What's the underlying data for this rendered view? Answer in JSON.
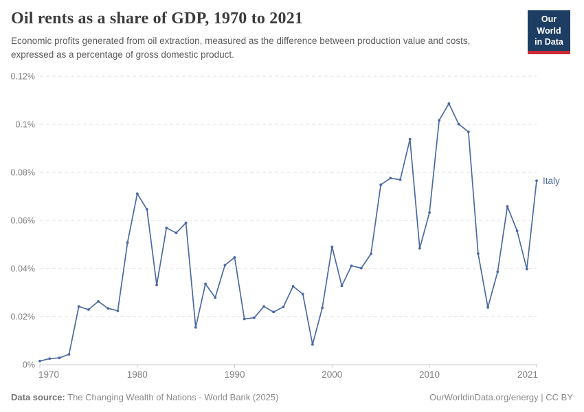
{
  "header": {
    "title": "Oil rents as a share of GDP, 1970 to 2021",
    "subtitle": "Economic profits generated from oil extraction, measured as the difference between production value and costs, expressed as a percentage of gross domestic product.",
    "logo": {
      "line1": "Our World",
      "line2": "in Data",
      "bg_color": "#1d3d63",
      "accent_color": "#cc2a36"
    }
  },
  "footer": {
    "source_label": "Data source:",
    "source_text": " The Changing Wealth of Nations - World Bank (2025)",
    "credit": "OurWorldinData.org/energy | CC BY"
  },
  "chart_data": {
    "type": "line",
    "title": "Oil rents as a share of GDP, 1970 to 2021",
    "xlabel": "",
    "ylabel": "",
    "xlim": [
      1970,
      2021
    ],
    "ylim": [
      0,
      0.12
    ],
    "grid": "horizontal-dashed",
    "legend_position": "end-of-line-label",
    "x_ticks": [
      1970,
      1980,
      1990,
      2000,
      2010,
      2021
    ],
    "y_ticks": [
      {
        "value": 0,
        "label": "0%"
      },
      {
        "value": 0.02,
        "label": "0.02%"
      },
      {
        "value": 0.04,
        "label": "0.04%"
      },
      {
        "value": 0.06,
        "label": "0.06%"
      },
      {
        "value": 0.08,
        "label": "0.08%"
      },
      {
        "value": 0.1,
        "label": "0.1%"
      },
      {
        "value": 0.12,
        "label": "0.12%"
      }
    ],
    "unit": "% of GDP",
    "series": [
      {
        "name": "Italy",
        "color": "#4b6aa2",
        "x": [
          1970,
          1971,
          1972,
          1973,
          1974,
          1975,
          1976,
          1977,
          1978,
          1979,
          1980,
          1981,
          1982,
          1983,
          1984,
          1985,
          1986,
          1987,
          1988,
          1989,
          1990,
          1991,
          1992,
          1993,
          1994,
          1995,
          1996,
          1997,
          1998,
          1999,
          2000,
          2001,
          2002,
          2003,
          2004,
          2005,
          2006,
          2007,
          2008,
          2009,
          2010,
          2011,
          2012,
          2013,
          2014,
          2015,
          2016,
          2017,
          2018,
          2019,
          2020,
          2021
        ],
        "values": [
          0.0015,
          0.0025,
          0.0028,
          0.0043,
          0.0242,
          0.0229,
          0.0263,
          0.0234,
          0.0224,
          0.0508,
          0.0711,
          0.0646,
          0.0331,
          0.0569,
          0.0548,
          0.059,
          0.0155,
          0.0336,
          0.0279,
          0.0414,
          0.0446,
          0.019,
          0.0195,
          0.0242,
          0.0219,
          0.024,
          0.0326,
          0.0293,
          0.0084,
          0.0236,
          0.049,
          0.0328,
          0.0411,
          0.0401,
          0.0461,
          0.0748,
          0.0776,
          0.0769,
          0.0938,
          0.0484,
          0.0633,
          0.1017,
          0.1086,
          0.1001,
          0.0969,
          0.0462,
          0.0238,
          0.0386,
          0.0658,
          0.0557,
          0.0398,
          0.0765
        ]
      }
    ]
  }
}
